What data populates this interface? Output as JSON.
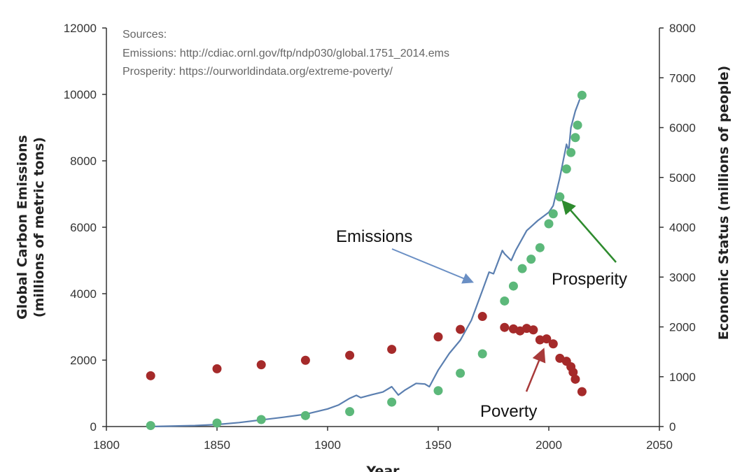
{
  "chart_data": {
    "type": "line",
    "xlabel": "Year",
    "ylabel_left": "Global Carbon Emissions (millions of metric tons)",
    "ylabel_right": "Economic Status (millions of people)",
    "xlim": [
      1800,
      2050
    ],
    "ylim_left": [
      0,
      12000
    ],
    "ylim_right": [
      0,
      8000
    ],
    "x_ticks": [
      1800,
      1850,
      1900,
      1950,
      2000,
      2050
    ],
    "y_ticks_left": [
      0,
      2000,
      4000,
      6000,
      8000,
      10000,
      12000
    ],
    "y_ticks_right": [
      0,
      1000,
      2000,
      3000,
      4000,
      5000,
      6000,
      7000,
      8000
    ],
    "grid": false,
    "sources": {
      "heading": "Sources:",
      "emissions": "Emissions: http://cdiac.ornl.gov/ftp/ndp030/global.1751_2014.ems",
      "prosperity": "Prosperity: https://ourworldindata.org/extreme-poverty/"
    },
    "series": [
      {
        "name": "Emissions",
        "kind": "line",
        "axis": "left",
        "color": "#5b7fb0",
        "x": [
          1820,
          1840,
          1850,
          1860,
          1870,
          1880,
          1890,
          1900,
          1905,
          1910,
          1913,
          1915,
          1920,
          1925,
          1929,
          1932,
          1935,
          1940,
          1944,
          1946,
          1950,
          1955,
          1960,
          1965,
          1970,
          1973,
          1975,
          1979,
          1980,
          1983,
          1985,
          1990,
          1995,
          2000,
          2002,
          2005,
          2008,
          2009,
          2010,
          2012,
          2014
        ],
        "y": [
          0,
          30,
          60,
          120,
          200,
          280,
          370,
          530,
          650,
          850,
          940,
          870,
          960,
          1040,
          1200,
          950,
          1100,
          1300,
          1280,
          1200,
          1700,
          2200,
          2600,
          3200,
          4100,
          4650,
          4600,
          5300,
          5200,
          5000,
          5300,
          5900,
          6200,
          6450,
          6650,
          7500,
          8500,
          8300,
          9000,
          9500,
          9850
        ]
      },
      {
        "name": "Prosperity",
        "kind": "scatter",
        "axis": "right",
        "color": "#5cb87a",
        "x": [
          1820,
          1850,
          1870,
          1890,
          1910,
          1929,
          1950,
          1960,
          1970,
          1980,
          1984,
          1988,
          1992,
          1996,
          2000,
          2002,
          2005,
          2008,
          2010,
          2012,
          2013,
          2015
        ],
        "y": [
          20,
          70,
          140,
          220,
          300,
          490,
          720,
          1070,
          1460,
          2520,
          2820,
          3170,
          3360,
          3590,
          4070,
          4270,
          4610,
          5170,
          5500,
          5800,
          6050,
          6650
        ]
      },
      {
        "name": "Poverty",
        "kind": "scatter",
        "axis": "right",
        "color": "#a52a2a",
        "x": [
          1820,
          1850,
          1870,
          1890,
          1910,
          1929,
          1950,
          1960,
          1970,
          1980,
          1984,
          1987,
          1990,
          1993,
          1996,
          1999,
          2002,
          2005,
          2008,
          2010,
          2011,
          2012,
          2015
        ],
        "y": [
          1020,
          1160,
          1240,
          1330,
          1430,
          1550,
          1800,
          1950,
          2210,
          1990,
          1960,
          1920,
          1970,
          1940,
          1740,
          1760,
          1660,
          1370,
          1310,
          1200,
          1090,
          950,
          700
        ]
      }
    ],
    "annotations": [
      {
        "text": "Emissions",
        "color": "#6a8fc4"
      },
      {
        "text": "Prosperity",
        "color": "#2e8b2e"
      },
      {
        "text": "Poverty",
        "color": "#a83a3a"
      }
    ]
  }
}
